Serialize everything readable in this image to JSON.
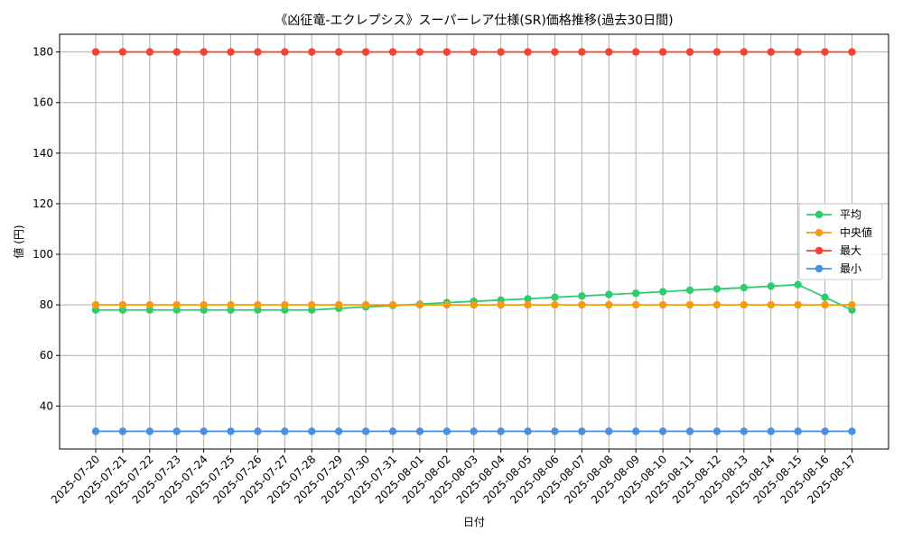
{
  "chart_data": {
    "type": "line",
    "title": "《凶征竜-エクレプシス》スーパーレア仕様(SR)価格推移(過去30日間)",
    "xlabel": "日付",
    "ylabel": "値 (円)",
    "ylim": [
      23,
      187
    ],
    "yticks": [
      40,
      60,
      80,
      100,
      120,
      140,
      160,
      180
    ],
    "grid": true,
    "legend_position": "center-right",
    "categories": [
      "2025-07-20",
      "2025-07-21",
      "2025-07-22",
      "2025-07-23",
      "2025-07-24",
      "2025-07-25",
      "2025-07-26",
      "2025-07-27",
      "2025-07-28",
      "2025-07-29",
      "2025-07-30",
      "2025-07-31",
      "2025-08-01",
      "2025-08-02",
      "2025-08-03",
      "2025-08-04",
      "2025-08-05",
      "2025-08-06",
      "2025-08-07",
      "2025-08-08",
      "2025-08-09",
      "2025-08-10",
      "2025-08-11",
      "2025-08-12",
      "2025-08-13",
      "2025-08-14",
      "2025-08-15",
      "2025-08-16",
      "2025-08-17"
    ],
    "series": [
      {
        "name": "平均",
        "color": "#2ecc71",
        "values": [
          78,
          78,
          78,
          78,
          78,
          78,
          78,
          78,
          78,
          78.6,
          79.2,
          79.7,
          80.3,
          80.9,
          81.4,
          81.9,
          82.4,
          83.0,
          83.5,
          84.1,
          84.6,
          85.2,
          85.8,
          86.3,
          86.8,
          87.4,
          88.0,
          83.0,
          78.0
        ]
      },
      {
        "name": "中央値",
        "color": "#f39c12",
        "values": [
          80,
          80,
          80,
          80,
          80,
          80,
          80,
          80,
          80,
          80,
          80,
          80,
          80,
          80,
          80,
          80,
          80,
          80,
          80,
          80,
          80,
          80,
          80,
          80,
          80,
          80,
          80,
          80,
          80
        ]
      },
      {
        "name": "最大",
        "color": "#f44336",
        "values": [
          180,
          180,
          180,
          180,
          180,
          180,
          180,
          180,
          180,
          180,
          180,
          180,
          180,
          180,
          180,
          180,
          180,
          180,
          180,
          180,
          180,
          180,
          180,
          180,
          180,
          180,
          180,
          180,
          180
        ]
      },
      {
        "name": "最小",
        "color": "#4a90e2",
        "values": [
          30,
          30,
          30,
          30,
          30,
          30,
          30,
          30,
          30,
          30,
          30,
          30,
          30,
          30,
          30,
          30,
          30,
          30,
          30,
          30,
          30,
          30,
          30,
          30,
          30,
          30,
          30,
          30,
          30
        ]
      }
    ]
  }
}
